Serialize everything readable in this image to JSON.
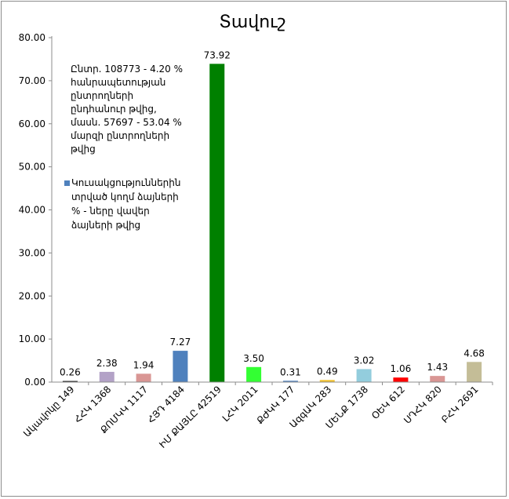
{
  "chart_data": {
    "type": "bar",
    "title": "Տավուշ",
    "categories": [
      "Ակավոկը 149",
      "ՀՀԿ 1368",
      "ՔՈՄԿԿ 1117",
      "ՀՅԴ 4184",
      "ԻՄ ՔԱՅԼԸ 42519",
      "ԼՀԿ 2011",
      "ՔԺԿԿ 177",
      "ԱզգԱԿ 283",
      "ՄԵՆՔ 1738",
      "ՕԵԿ 612",
      "ՍԴՀԿ 820",
      "ԲՀԿ 2691"
    ],
    "values": [
      0.26,
      2.38,
      1.94,
      7.27,
      73.92,
      3.5,
      0.31,
      0.49,
      3.02,
      1.06,
      1.43,
      4.68
    ],
    "value_labels": [
      "0.26",
      "2.38",
      "1.94",
      "7.27",
      "73.92",
      "3.50",
      "0.31",
      "0.49",
      "3.02",
      "1.06",
      "1.43",
      "4.68"
    ],
    "colors": [
      "#1a1a1a",
      "#b3a2c7",
      "#d99694",
      "#4f81bd",
      "#008000",
      "#33ff33",
      "#4f81bd",
      "#f2c12e",
      "#93cddd",
      "#ff0000",
      "#d99694",
      "#c4bd97"
    ],
    "ylim": [
      0,
      80
    ],
    "yticks": [
      "0.00",
      "10.00",
      "20.00",
      "30.00",
      "40.00",
      "50.00",
      "60.00",
      "70.00",
      "80.00"
    ],
    "grid": false,
    "annotation": [
      "Ընտր. 108773 - 4.20 %",
      "հանրապետության",
      "ընտրողների",
      "ընդհանուր թվից,",
      "մասն. 57697 - 53.04 %",
      "մարզի ընտրողների",
      "թվից"
    ],
    "legend": {
      "text": [
        "Կուսակցություններին",
        "տրված կողմ ձայների",
        "% - ները վավեր",
        "ձայների թվից"
      ],
      "color": "#4f81bd",
      "placement": "left"
    }
  }
}
